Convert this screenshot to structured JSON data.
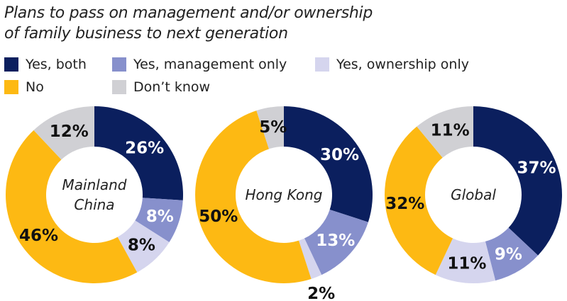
{
  "title_lines": [
    "Plans to pass on management and/or ownership",
    "of family business to next generation"
  ],
  "chart_data": {
    "type": "pie",
    "title": "Plans to pass on management and/or ownership of family business to next generation",
    "legend": [
      "Yes, both",
      "Yes, management only",
      "Yes, ownership only",
      "No",
      "Don’t know"
    ],
    "colors": [
      "#0b1f5e",
      "#8790cc",
      "#d5d5ee",
      "#fdb913",
      "#d0d0d4"
    ],
    "label_colors": [
      "#ffffff",
      "#ffffff",
      "#111111",
      "#111111",
      "#111111"
    ],
    "charts": [
      {
        "name": "Mainland China",
        "center_lines": [
          "Mainland",
          "China"
        ],
        "values": [
          26,
          8,
          8,
          46,
          12
        ]
      },
      {
        "name": "Hong Kong",
        "center_lines": [
          "Hong Kong"
        ],
        "values": [
          30,
          13,
          2,
          50,
          5
        ]
      },
      {
        "name": "Global",
        "center_lines": [
          "Global"
        ],
        "values": [
          37,
          9,
          11,
          32,
          11
        ]
      }
    ],
    "unit": "%"
  }
}
